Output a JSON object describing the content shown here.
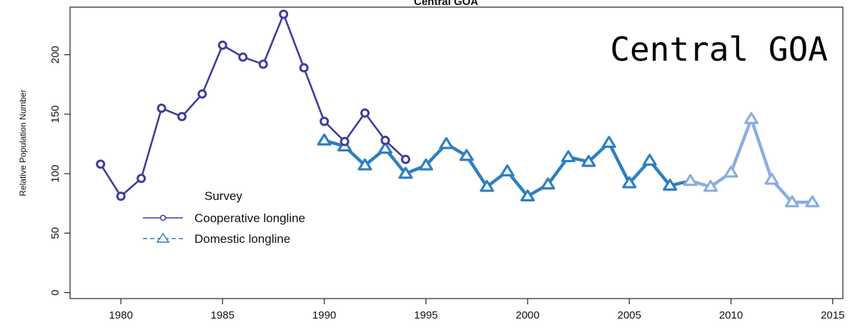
{
  "chart_data": {
    "type": "line",
    "title": "Central GOA",
    "overlay_title": "Central GOA",
    "xlabel": "",
    "ylabel": "Relative Population Number",
    "xlim": [
      1977.5,
      2015.5
    ],
    "ylim": [
      -5,
      240
    ],
    "xticks": [
      1980,
      1985,
      1990,
      1995,
      2000,
      2005,
      2010,
      2015
    ],
    "yticks": [
      0,
      50,
      100,
      150,
      200
    ],
    "grid": false,
    "legend": {
      "title": "Survey",
      "position": "left"
    },
    "series": [
      {
        "name": "Cooperative longline",
        "color": "#3d3d9c",
        "marker": "circle",
        "style": "solid",
        "x": [
          1979,
          1980,
          1981,
          1982,
          1983,
          1984,
          1985,
          1986,
          1987,
          1988,
          1989,
          1990,
          1991,
          1992,
          1993,
          1994
        ],
        "y": [
          108,
          81,
          96,
          155,
          148,
          167,
          208,
          198,
          192,
          234,
          189,
          144,
          127,
          151,
          128,
          112
        ]
      },
      {
        "name": "Domestic longline",
        "color": "#2e7fc0",
        "color_recent": "#8aaee0",
        "marker": "triangle",
        "style": "dashed",
        "x": [
          1990,
          1991,
          1992,
          1993,
          1994,
          1995,
          1996,
          1997,
          1998,
          1999,
          2000,
          2001,
          2002,
          2003,
          2004,
          2005,
          2006,
          2007,
          2008,
          2009,
          2010,
          2011,
          2012,
          2013,
          2014
        ],
        "y": [
          128,
          123,
          107,
          121,
          100,
          107,
          125,
          115,
          89,
          102,
          81,
          91,
          114,
          110,
          126,
          92,
          111,
          90,
          94,
          89,
          101,
          146,
          95,
          76,
          76
        ]
      }
    ]
  }
}
